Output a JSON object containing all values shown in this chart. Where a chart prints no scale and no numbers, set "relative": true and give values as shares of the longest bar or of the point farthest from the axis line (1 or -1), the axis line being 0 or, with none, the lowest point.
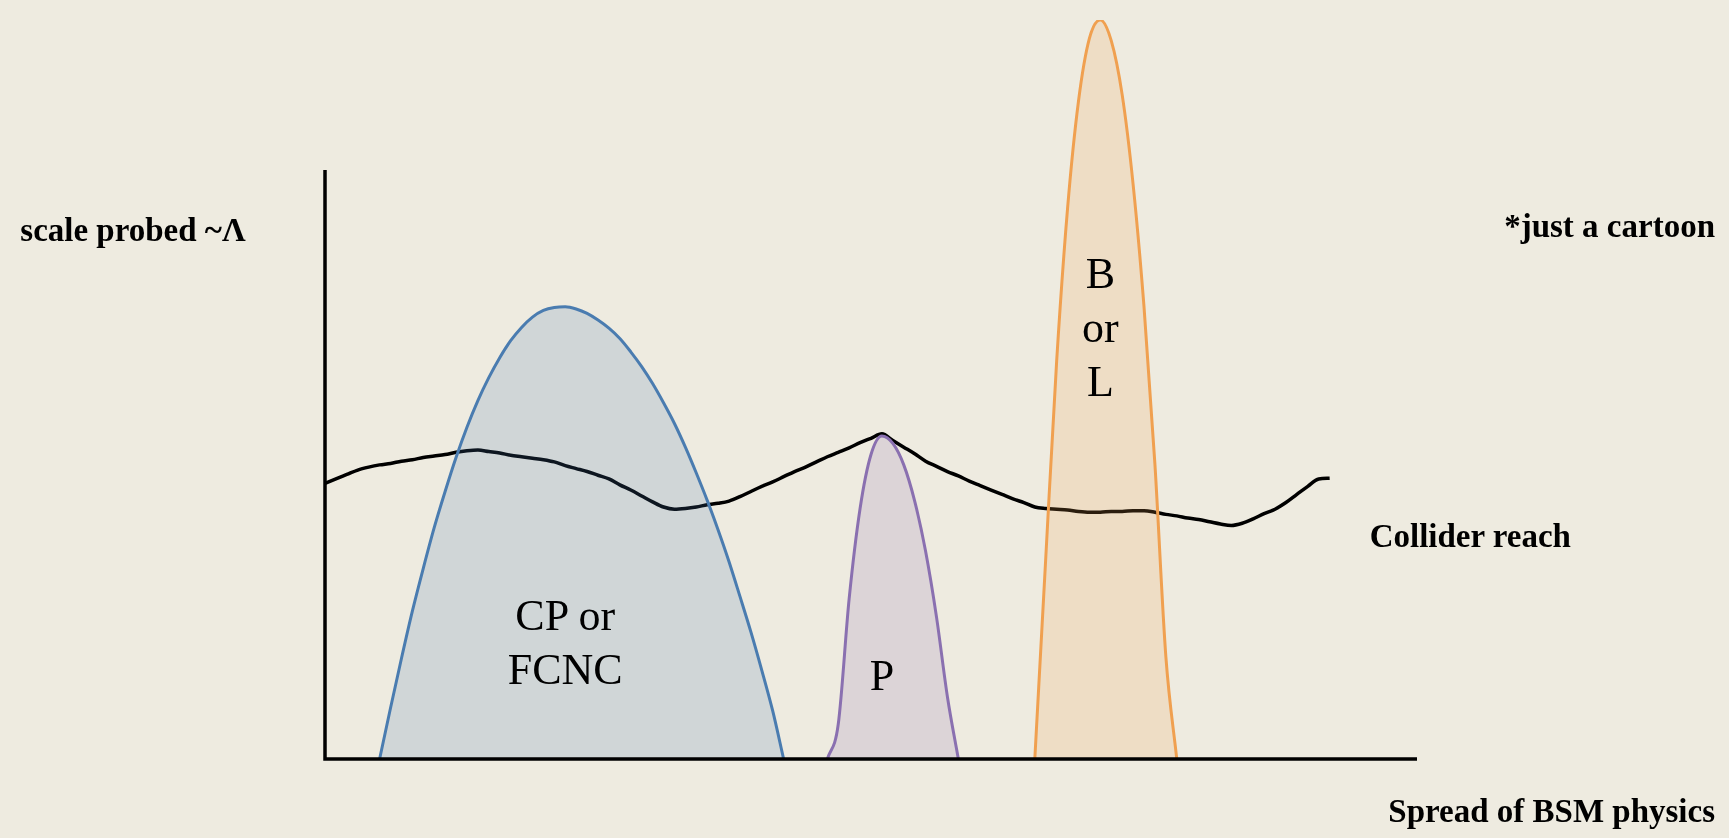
{
  "chart_data": {
    "type": "area",
    "relative": true,
    "ylabel": "scale probed ~Λ",
    "xlabel": "Spread of BSM physics",
    "annotations": [
      "*just a cartoon"
    ],
    "categories": [
      null,
      null,
      null,
      null,
      null,
      null,
      null,
      null,
      null,
      null,
      null,
      null,
      null,
      null,
      null,
      null,
      null,
      null,
      null,
      null,
      null,
      null,
      null,
      null,
      null,
      null,
      null,
      null,
      null,
      null,
      null,
      null,
      null,
      null,
      null,
      null,
      null,
      null,
      null,
      null,
      null,
      null,
      null,
      null,
      null,
      null,
      null,
      null,
      null,
      null,
      null,
      null,
      null,
      null,
      null,
      null,
      null,
      null,
      null,
      null,
      null,
      null,
      null,
      null,
      null,
      null,
      null,
      null,
      null,
      null,
      null,
      null,
      null,
      null,
      null,
      null,
      null,
      null,
      null,
      null,
      null,
      null,
      null,
      null,
      null,
      null,
      null,
      null,
      null,
      null,
      null,
      null,
      null,
      null,
      null,
      null,
      null,
      null,
      null,
      null,
      null
    ],
    "series": [
      {
        "name": "CP or FCNC",
        "color": "#4a7cb0",
        "values": [
          null,
          null,
          null,
          null,
          null,
          0,
          0.069,
          0.136,
          0.2,
          0.258,
          0.313,
          0.362,
          0.408,
          0.449,
          0.485,
          0.516,
          0.543,
          0.566,
          0.584,
          0.598,
          0.607,
          0.611,
          0.612,
          0.609,
          0.603,
          0.594,
          0.583,
          0.569,
          0.551,
          0.531,
          0.508,
          0.482,
          0.454,
          0.422,
          0.387,
          0.35,
          0.31,
          0.267,
          0.22,
          0.172,
          0.12,
          0.065,
          0,
          null,
          null,
          null,
          null,
          null,
          null,
          null,
          null,
          null,
          null,
          null,
          null,
          null,
          null,
          null,
          null,
          null,
          null,
          null,
          null,
          null,
          null,
          null,
          null,
          null,
          null,
          null,
          null,
          null,
          null,
          null,
          null,
          null,
          null,
          null,
          null,
          null,
          null,
          null,
          null,
          null,
          null,
          null,
          null,
          null,
          null,
          null,
          null,
          null,
          null,
          null,
          null,
          null,
          null,
          null,
          null,
          null,
          null
        ]
      },
      {
        "name": "P",
        "color": "#8a70b0",
        "values": [
          null,
          null,
          null,
          null,
          null,
          null,
          null,
          null,
          null,
          null,
          null,
          null,
          null,
          null,
          null,
          null,
          null,
          null,
          null,
          null,
          null,
          null,
          null,
          null,
          null,
          null,
          null,
          null,
          null,
          null,
          null,
          null,
          null,
          null,
          null,
          null,
          null,
          null,
          null,
          null,
          null,
          null,
          null,
          null,
          null,
          null,
          0,
          0.047,
          0.217,
          0.339,
          0.412,
          0.437,
          0.427,
          0.398,
          0.349,
          0.281,
          0.192,
          0.084,
          0,
          null,
          null,
          null,
          null,
          null,
          null,
          null,
          null,
          null,
          null,
          null,
          null,
          null,
          null,
          null,
          null,
          null,
          null,
          null,
          null,
          null,
          null,
          null,
          null,
          null,
          null,
          null,
          null,
          null,
          null,
          null,
          null,
          null,
          null,
          null,
          null,
          null,
          null,
          null,
          null,
          null,
          null
        ]
      },
      {
        "name": "B or L",
        "color": "#f0a050",
        "values": [
          null,
          null,
          null,
          null,
          null,
          null,
          null,
          null,
          null,
          null,
          null,
          null,
          null,
          null,
          null,
          null,
          null,
          null,
          null,
          null,
          null,
          null,
          null,
          null,
          null,
          null,
          null,
          null,
          null,
          null,
          null,
          null,
          null,
          null,
          null,
          null,
          null,
          null,
          null,
          null,
          null,
          null,
          null,
          null,
          null,
          null,
          null,
          null,
          null,
          null,
          null,
          null,
          null,
          null,
          null,
          null,
          null,
          null,
          null,
          null,
          null,
          null,
          null,
          null,
          null,
          0,
          0.271,
          0.538,
          0.745,
          0.89,
          0.975,
          1,
          0.972,
          0.899,
          0.778,
          0.612,
          0.399,
          0.139,
          0,
          null,
          null,
          null,
          null,
          null,
          null,
          null,
          null,
          null,
          null,
          null,
          null,
          null,
          null,
          null,
          null,
          null,
          null,
          null,
          null,
          null,
          null
        ]
      },
      {
        "name": "Collider reach",
        "type": "line",
        "color": "#000000",
        "values": [
          0.373,
          0.379,
          0.385,
          0.391,
          0.395,
          0.398,
          0.4,
          0.403,
          0.405,
          0.408,
          0.41,
          0.412,
          0.415,
          0.417,
          0.418,
          0.416,
          0.414,
          0.411,
          0.409,
          0.407,
          0.405,
          0.402,
          0.397,
          0.393,
          0.389,
          0.384,
          0.379,
          0.371,
          0.364,
          0.356,
          0.348,
          0.341,
          0.338,
          0.339,
          0.341,
          0.344,
          0.346,
          0.349,
          0.355,
          0.362,
          0.369,
          0.375,
          0.382,
          0.389,
          0.395,
          0.402,
          0.409,
          0.415,
          0.421,
          0.428,
          0.434,
          0.44,
          0.431,
          0.422,
          0.413,
          0.403,
          0.396,
          0.389,
          0.383,
          0.376,
          0.37,
          0.364,
          0.358,
          0.352,
          0.347,
          0.341,
          0.339,
          0.338,
          0.337,
          0.335,
          0.334,
          0.334,
          0.335,
          0.335,
          0.336,
          0.336,
          0.334,
          0.331,
          0.329,
          0.326,
          0.324,
          0.321,
          0.318,
          0.316,
          0.319,
          0.325,
          0.332,
          0.338,
          0.347,
          0.358,
          0.369,
          0.379,
          0.38,
          null,
          null,
          null,
          null,
          null,
          null,
          null,
          null
        ]
      }
    ]
  }
}
